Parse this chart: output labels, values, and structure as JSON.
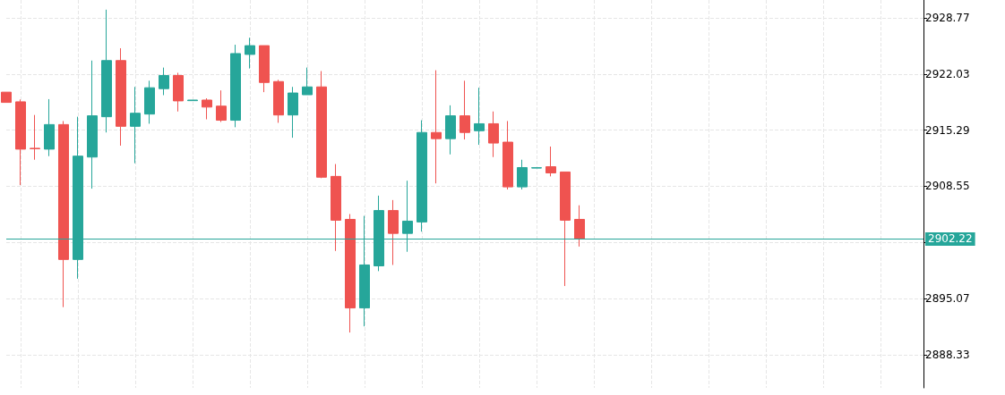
{
  "chart_data": {
    "type": "candlestick",
    "categories": [
      null,
      null,
      null,
      null,
      null,
      null,
      null,
      null,
      null,
      null,
      null,
      null,
      null,
      null,
      null,
      null,
      null,
      null,
      null,
      null,
      null,
      null,
      null,
      null,
      null,
      null,
      null,
      null,
      null,
      null,
      null,
      null,
      null,
      null,
      null,
      null,
      null,
      null,
      null,
      null,
      null,
      null,
      null,
      null,
      null,
      null,
      null,
      null,
      null,
      null,
      null,
      null,
      null,
      null,
      null,
      null,
      null,
      null,
      null,
      null,
      null,
      null,
      null,
      null,
      null
    ],
    "ohlc": [
      [
        2919.85,
        2919.85,
        2918.62,
        2918.62
      ],
      [
        2918.69,
        2918.97,
        2908.69,
        2913.01
      ],
      [
        2913.11,
        2917.11,
        2911.74,
        2913.06
      ],
      [
        2913.01,
        2919.01,
        2912.17,
        2915.96
      ],
      [
        2915.96,
        2916.38,
        2894.05,
        2899.77
      ],
      [
        2899.77,
        2916.9,
        2897.46,
        2912.17
      ],
      [
        2912.06,
        2923.64,
        2908.27,
        2917.01
      ],
      [
        2916.9,
        2929.75,
        2915.01,
        2923.64
      ],
      [
        2923.64,
        2925.12,
        2913.43,
        2915.75
      ],
      [
        2915.75,
        2920.48,
        2911.32,
        2917.32
      ],
      [
        2917.22,
        2921.22,
        2916.06,
        2920.38
      ],
      [
        2920.27,
        2922.8,
        2919.49,
        2921.85
      ],
      [
        2921.85,
        2922.17,
        2917.53,
        2918.8
      ],
      [
        2918.83,
        2918.9,
        2918.83,
        2918.9
      ],
      [
        2918.9,
        2919.11,
        2916.59,
        2918.06
      ],
      [
        2918.17,
        2920.06,
        2916.27,
        2916.48
      ],
      [
        2916.48,
        2925.54,
        2915.64,
        2924.48
      ],
      [
        2924.38,
        2926.38,
        2922.69,
        2925.43
      ],
      [
        2925.43,
        2925.43,
        2919.85,
        2921.01
      ],
      [
        2921.12,
        2921.33,
        2916.17,
        2917.11
      ],
      [
        2917.11,
        2920.48,
        2914.38,
        2919.75
      ],
      [
        2919.54,
        2922.8,
        2919.54,
        2920.48
      ],
      [
        2920.48,
        2922.38,
        2909.53,
        2909.64
      ],
      [
        2909.74,
        2911.22,
        2900.79,
        2904.48
      ],
      [
        2904.58,
        2905.22,
        2891.0,
        2893.95
      ],
      [
        2893.95,
        2905.0,
        2891.74,
        2899.11
      ],
      [
        2899.0,
        2907.43,
        2898.37,
        2905.64
      ],
      [
        2905.64,
        2906.9,
        2899.11,
        2902.9
      ],
      [
        2902.9,
        2909.22,
        2900.69,
        2904.37
      ],
      [
        2904.27,
        2916.48,
        2903.11,
        2915.01
      ],
      [
        2915.01,
        2922.48,
        2908.9,
        2914.27
      ],
      [
        2914.27,
        2918.27,
        2912.38,
        2917.01
      ],
      [
        2917.01,
        2921.22,
        2914.17,
        2915.01
      ],
      [
        2915.22,
        2920.38,
        2913.53,
        2916.06
      ],
      [
        2916.06,
        2917.53,
        2912.06,
        2913.74
      ],
      [
        2913.85,
        2916.38,
        2908.17,
        2908.48
      ],
      [
        2908.48,
        2911.74,
        2908.17,
        2910.8
      ],
      [
        2910.74,
        2910.78,
        2910.74,
        2910.78
      ],
      [
        2910.9,
        2913.32,
        2909.74,
        2910.16
      ],
      [
        2910.27,
        2910.27,
        2896.58,
        2904.48
      ],
      [
        2904.58,
        2906.27,
        2901.32,
        2902.22
      ],
      null,
      null,
      null,
      null,
      null,
      null,
      null,
      null,
      null,
      null,
      null,
      null,
      null,
      null,
      null,
      null,
      null,
      null,
      null,
      null,
      null,
      null,
      null,
      null
    ],
    "colors": [
      "#ef5350",
      "#ef5350",
      "#ef5350",
      "#26a69a",
      "#ef5350",
      "#26a69a",
      "#26a69a",
      "#26a69a",
      "#ef5350",
      "#26a69a",
      "#26a69a",
      "#26a69a",
      "#ef5350",
      "#26a69a",
      "#ef5350",
      "#ef5350",
      "#26a69a",
      "#26a69a",
      "#ef5350",
      "#ef5350",
      "#26a69a",
      "#26a69a",
      "#ef5350",
      "#ef5350",
      "#ef5350",
      "#26a69a",
      "#26a69a",
      "#ef5350",
      "#26a69a",
      "#26a69a",
      "#ef5350",
      "#26a69a",
      "#ef5350",
      "#26a69a",
      "#ef5350",
      "#ef5350",
      "#26a69a",
      "#26a69a",
      "#ef5350",
      "#ef5350",
      "#ef5350",
      null,
      null,
      null,
      null,
      null,
      null,
      null,
      null,
      null,
      null,
      null,
      null,
      null,
      null,
      null,
      null,
      null,
      null,
      null,
      null,
      null,
      null,
      null,
      null
    ],
    "ylim": [
      2884.36,
      2930.91
    ],
    "yticks": [
      2888.33,
      2895.07,
      {
        "value": 2901.81,
        "label": null
      },
      2908.55,
      2915.29,
      2922.03,
      2928.77
    ],
    "ref_lines": [
      {
        "axis": "y",
        "value": 2902.22,
        "label": "2902.22",
        "color": "#26a69a"
      }
    ],
    "grid": true
  }
}
